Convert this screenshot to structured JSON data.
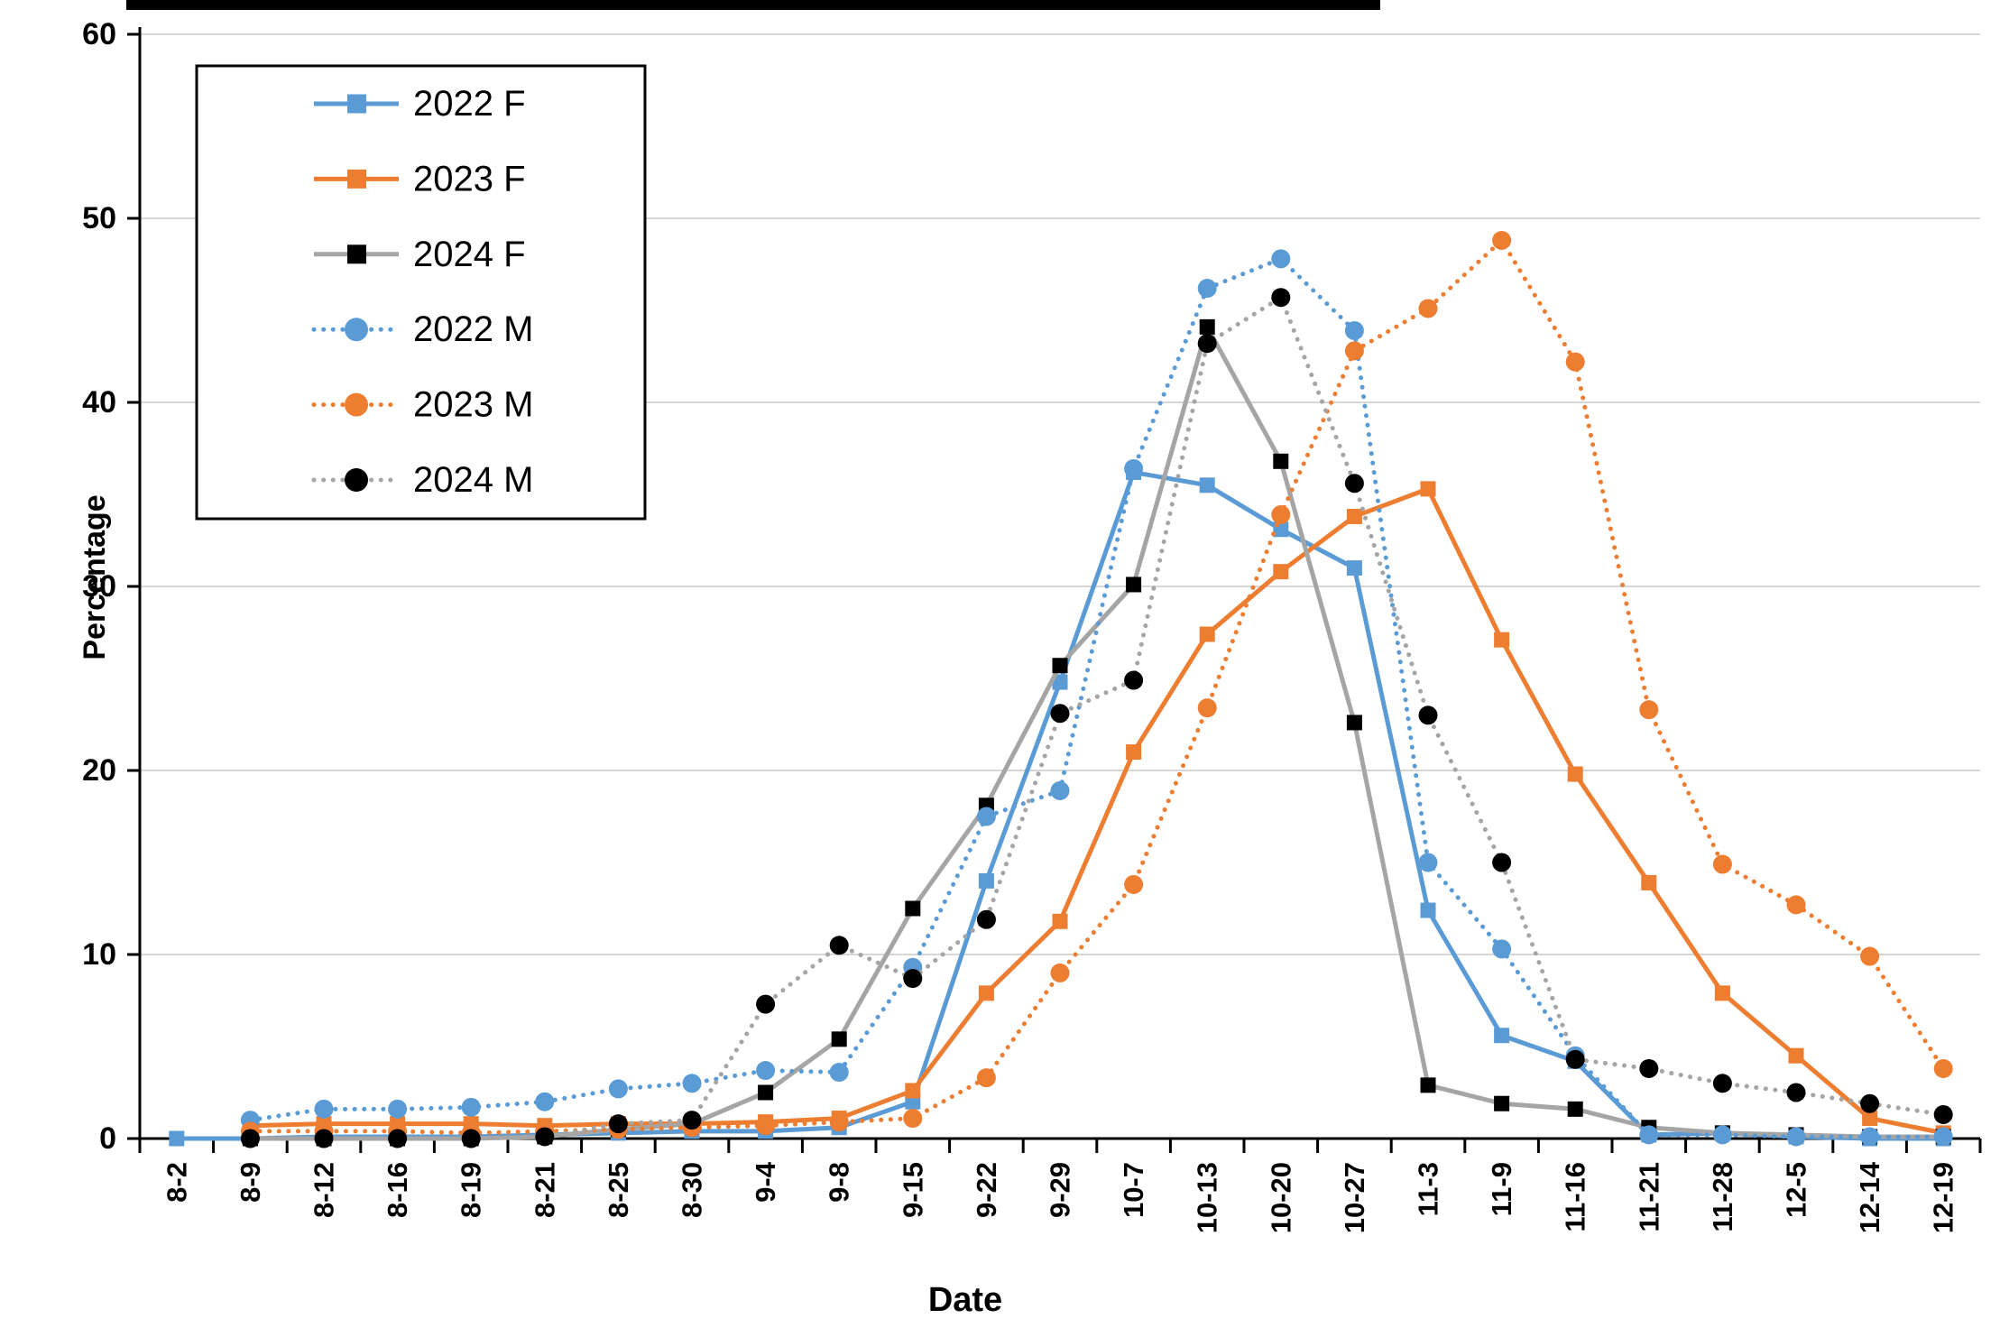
{
  "redaction_bar": {
    "color": "#000000"
  },
  "chart_data": {
    "type": "line",
    "title": "",
    "xlabel": "Date",
    "ylabel": "Percentage",
    "ylim": [
      0,
      60
    ],
    "yticks": [
      0,
      10,
      20,
      30,
      40,
      50,
      60
    ],
    "grid": "horizontal",
    "legend_position": "top-left-box",
    "categories": [
      "8-2",
      "8-9",
      "8-12",
      "8-16",
      "8-19",
      "8-21",
      "8-25",
      "8-30",
      "9-4",
      "9-8",
      "9-15",
      "9-22",
      "9-29",
      "10-7",
      "10-13",
      "10-20",
      "10-27",
      "11-3",
      "11-9",
      "11-16",
      "11-21",
      "11-28",
      "12-5",
      "12-14",
      "12-19"
    ],
    "series": [
      {
        "name": "2022 F",
        "color": "#5B9BD5",
        "marker_color": "#5B9BD5",
        "line": "solid",
        "marker": "square",
        "values": [
          0,
          0,
          0.1,
          0.1,
          0.1,
          0.2,
          0.3,
          0.4,
          0.4,
          0.6,
          2.0,
          14.0,
          24.8,
          36.2,
          35.5,
          33.1,
          31.0,
          12.4,
          5.6,
          4.2,
          0.2,
          0.3,
          0.1,
          0,
          0
        ]
      },
      {
        "name": "2023 F",
        "color": "#ED7D31",
        "marker_color": "#ED7D31",
        "line": "solid",
        "marker": "square",
        "values": [
          null,
          0.7,
          0.8,
          0.8,
          0.8,
          0.7,
          0.8,
          0.8,
          0.9,
          1.1,
          2.6,
          7.9,
          11.8,
          21.0,
          27.4,
          30.8,
          33.8,
          35.3,
          27.1,
          19.8,
          13.9,
          7.9,
          4.5,
          1.1,
          0.3
        ]
      },
      {
        "name": "2024 F",
        "color": "#A5A5A5",
        "marker_color": "#000000",
        "line": "solid",
        "marker": "square",
        "values": [
          null,
          0,
          0,
          0,
          0,
          0.1,
          0.5,
          0.8,
          2.5,
          5.4,
          12.5,
          18.1,
          25.7,
          30.1,
          44.1,
          36.8,
          22.6,
          2.9,
          1.9,
          1.6,
          0.6,
          0.3,
          0.2,
          0.1,
          0.1
        ]
      },
      {
        "name": "2022 M",
        "color": "#5B9BD5",
        "marker_color": "#5B9BD5",
        "line": "dotted",
        "marker": "circle",
        "values": [
          null,
          1.0,
          1.6,
          1.6,
          1.7,
          2.0,
          2.7,
          3.0,
          3.7,
          3.6,
          9.3,
          17.5,
          18.9,
          36.4,
          46.2,
          47.8,
          43.9,
          15.0,
          10.3,
          4.5,
          0.2,
          0.2,
          0.1,
          0.1,
          0.1
        ]
      },
      {
        "name": "2023 M",
        "color": "#ED7D31",
        "marker_color": "#ED7D31",
        "line": "dotted",
        "marker": "circle",
        "values": [
          null,
          0.4,
          0.4,
          0.4,
          0.3,
          0.4,
          0.5,
          0.6,
          0.7,
          0.9,
          1.1,
          3.3,
          9.0,
          13.8,
          23.4,
          33.9,
          42.8,
          45.1,
          48.8,
          42.2,
          23.3,
          14.9,
          12.7,
          9.9,
          3.8
        ]
      },
      {
        "name": "2024 M",
        "color": "#A5A5A5",
        "marker_color": "#000000",
        "line": "dotted",
        "marker": "circle",
        "values": [
          null,
          0,
          0,
          0,
          0,
          0.1,
          0.8,
          1.0,
          7.3,
          10.5,
          8.7,
          11.9,
          23.1,
          24.9,
          43.2,
          45.7,
          35.6,
          23.0,
          15.0,
          4.3,
          3.8,
          3.0,
          2.5,
          1.9,
          1.3
        ]
      }
    ]
  }
}
